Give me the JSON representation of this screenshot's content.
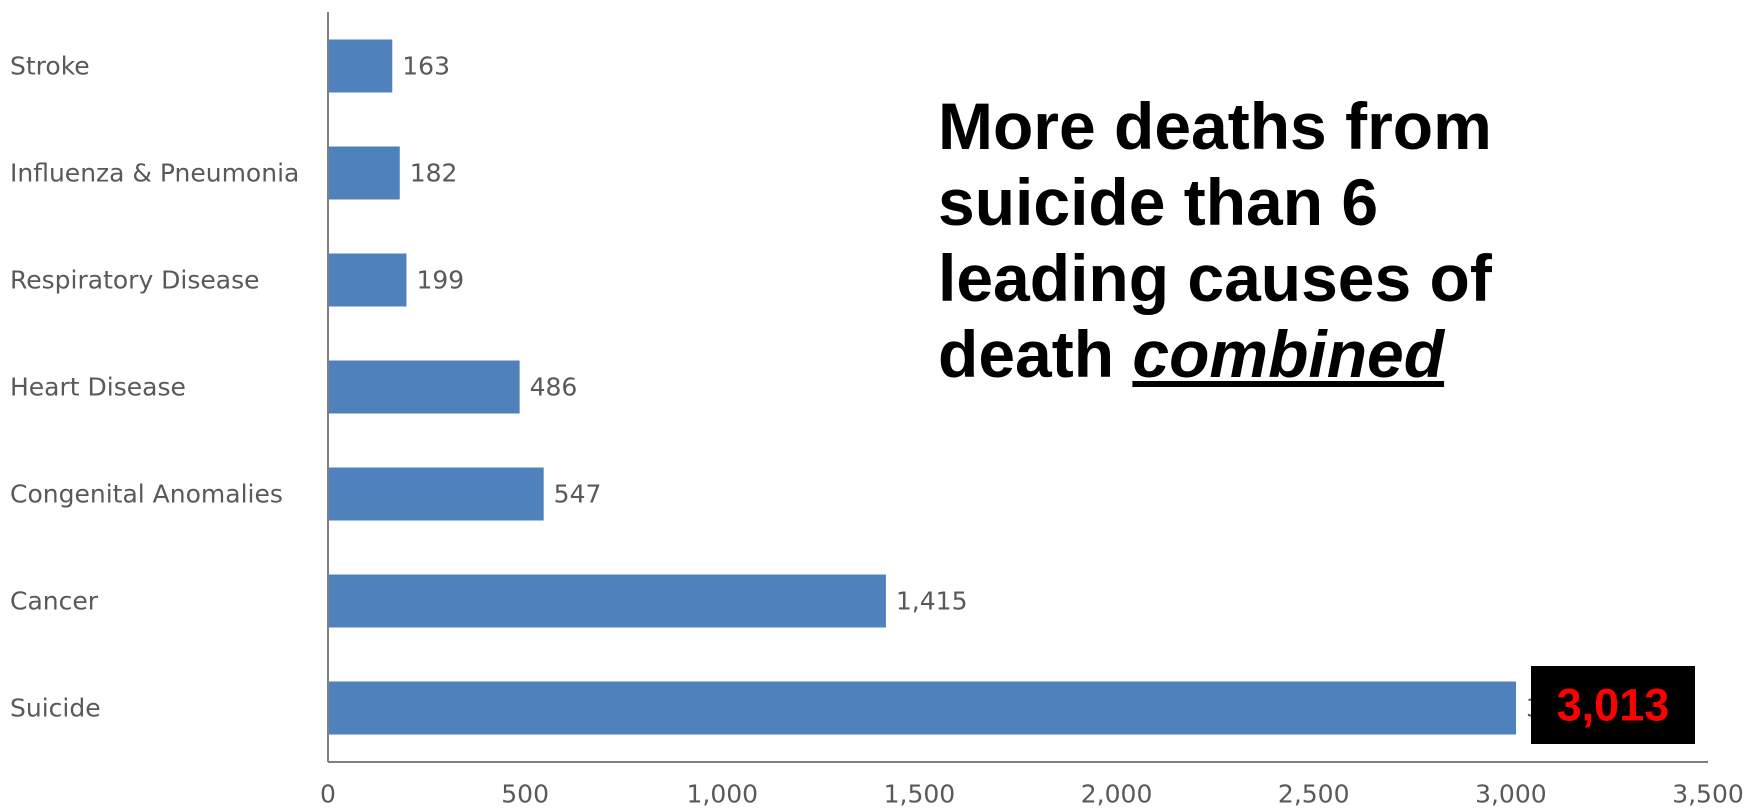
{
  "chart_data": {
    "type": "bar",
    "orientation": "horizontal",
    "categories": [
      "Stroke",
      "Influenza & Pneumonia",
      "Respiratory Disease",
      "Heart Disease",
      "Congenital Anomalies",
      "Cancer",
      "Suicide"
    ],
    "values": [
      163,
      182,
      199,
      486,
      547,
      1415,
      3013
    ],
    "data_labels": [
      "163",
      "182",
      "199",
      "486",
      "547",
      "1,415",
      "3,013"
    ],
    "xlim": [
      0,
      3500
    ],
    "x_ticks": [
      0,
      500,
      1000,
      1500,
      2000,
      2500,
      3000,
      3500
    ],
    "x_tick_labels": [
      "0",
      "500",
      "1,000",
      "1,500",
      "2,000",
      "2,500",
      "3,000",
      "3,500"
    ],
    "grid": false,
    "colors": {
      "bar": "#4f81bd",
      "axis": "#808080",
      "callout_bg": "#000000",
      "callout_text": "#ff0000"
    },
    "annotation": {
      "line1": "More deaths from",
      "line2": "suicide than 6",
      "line3": "leading causes of",
      "line4_prefix": "death ",
      "line4_emphasis": "combined"
    },
    "callout": "3,013"
  }
}
